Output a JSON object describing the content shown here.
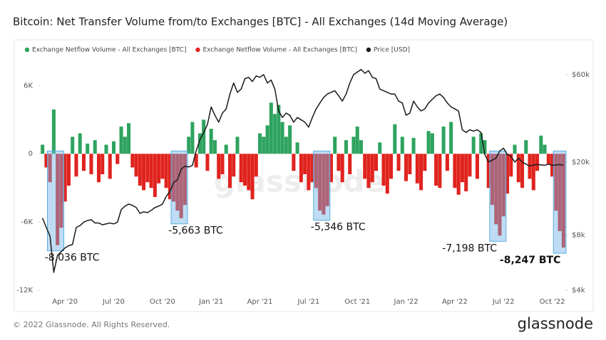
{
  "chart_data": {
    "type": "bar",
    "title": "Bitcoin: Net Transfer Volume from/to Exchanges [BTC] - All Exchanges (14d Moving Average)",
    "watermark": "glassnode",
    "legend": "top-left",
    "grid": false,
    "categories": [
      null,
      null,
      null,
      null,
      null,
      null,
      "Apr '20",
      null,
      null,
      null,
      null,
      null,
      null,
      null,
      null,
      null,
      null,
      null,
      null,
      "Jul '20",
      null,
      null,
      null,
      null,
      null,
      null,
      null,
      null,
      null,
      null,
      null,
      null,
      "Oct '20",
      null,
      null,
      null,
      null,
      null,
      null,
      null,
      null,
      null,
      null,
      null,
      null,
      "Jan '21",
      null,
      null,
      null,
      null,
      null,
      null,
      null,
      null,
      null,
      null,
      null,
      null,
      "Apr '21",
      null,
      null,
      null,
      null,
      null,
      null,
      null,
      null,
      null,
      null,
      null,
      null,
      "Jul '21",
      null,
      null,
      null,
      null,
      null,
      null,
      null,
      null,
      null,
      null,
      null,
      null,
      "Oct '21",
      null,
      null,
      null,
      null,
      null,
      null,
      null,
      null,
      null,
      null,
      null,
      null,
      "Jan '22",
      null,
      null,
      null,
      null,
      null,
      null,
      null,
      null,
      null,
      null,
      null,
      null,
      "Apr '22",
      null,
      null,
      null,
      null,
      null,
      null,
      null,
      null,
      null,
      null,
      null,
      null,
      "Jul '22",
      null,
      null,
      null,
      null,
      null,
      null,
      null,
      null,
      null,
      null,
      null,
      null,
      "Oct '22",
      null,
      null,
      null
    ],
    "series": [
      {
        "name": "Exchange Netflow Volume - All Exchanges [BTC]",
        "color": "#2ea35f",
        "negative_color": "#e0231e",
        "values": [
          800,
          -1200,
          -2500,
          3900,
          -8036,
          -6500,
          -4200,
          -2800,
          1500,
          -2000,
          1800,
          -1500,
          900,
          -1800,
          1200,
          -2500,
          -1800,
          800,
          -2200,
          1100,
          -900,
          2400,
          1500,
          2700,
          -1200,
          -2000,
          -2800,
          -3200,
          -2500,
          -3000,
          -3800,
          -2600,
          -2200,
          -3000,
          -4000,
          -4200,
          -5000,
          -5663,
          -4500,
          1500,
          2800,
          -1200,
          1800,
          3000,
          -1500,
          2200,
          1200,
          -2200,
          -1800,
          800,
          -3000,
          -2000,
          1500,
          -2500,
          -2800,
          -3200,
          -4000,
          -2000,
          1800,
          1500,
          2500,
          4500,
          3500,
          4300,
          2800,
          1500,
          2500,
          -1500,
          1000,
          -2500,
          -1800,
          -3200,
          -2500,
          -3000,
          -5000,
          -5346,
          -4600,
          -2500,
          1500,
          -1500,
          -2500,
          1200,
          -1800,
          1500,
          2400,
          1200,
          -2200,
          -3000,
          -2500,
          -1500,
          1000,
          -2800,
          -3500,
          -2200,
          2600,
          -1500,
          1500,
          -2400,
          -1800,
          1400,
          -2600,
          -3200,
          -1500,
          2000,
          1800,
          -2800,
          -3000,
          2400,
          -1500,
          2800,
          -3000,
          -3600,
          -2500,
          -3300,
          -2000,
          1500,
          -2200,
          1800,
          1200,
          -3000,
          -4500,
          -6200,
          -7198,
          -5500,
          -3500,
          -2000,
          800,
          -2500,
          -3000,
          1200,
          -2200,
          -3200,
          -1500,
          1600,
          800,
          -900,
          -2000,
          -5000,
          -6800,
          -8247
        ],
        "value_labels": [
          null,
          null,
          null,
          null,
          "-8,036 BTC",
          null,
          null,
          null,
          null,
          null,
          null,
          null,
          null,
          null,
          null,
          null,
          null,
          null,
          null,
          null,
          null,
          null,
          null,
          null,
          null,
          null,
          null,
          null,
          null,
          null,
          null,
          null,
          null,
          null,
          null,
          null,
          null,
          "-5,663 BTC",
          null,
          null,
          null,
          null,
          null,
          null,
          null,
          null,
          null,
          null,
          null,
          null,
          null,
          null,
          null,
          null,
          null,
          null,
          null,
          null,
          null,
          null,
          null,
          null,
          null,
          null,
          null,
          null,
          null,
          null,
          null,
          null,
          null,
          null,
          null,
          null,
          null,
          "-5,346 BTC",
          null,
          null,
          null,
          null,
          null,
          null,
          null,
          null,
          null,
          null,
          null,
          null,
          null,
          null,
          null,
          null,
          null,
          null,
          null,
          null,
          null,
          null,
          null,
          null,
          null,
          null,
          null,
          null,
          null,
          null,
          null,
          null,
          null,
          null,
          null,
          null,
          null,
          null,
          null,
          null,
          null,
          null,
          null,
          null,
          null,
          null,
          "-7,198 BTC",
          null,
          null,
          null,
          null,
          null,
          null,
          null,
          null,
          null,
          null,
          null,
          null,
          null,
          null,
          null,
          null,
          "-8,247 BTC"
        ]
      },
      {
        "name": "Price [USD]",
        "color": "#1a1a1a",
        "axis": "y2",
        "values": [
          9900,
          8800,
          7900,
          5000,
          6200,
          6500,
          6800,
          7000,
          7100,
          8800,
          9000,
          9400,
          9600,
          9700,
          9300,
          9300,
          9100,
          9200,
          9300,
          9200,
          9400,
          11000,
          11500,
          11800,
          11600,
          11300,
          10500,
          10700,
          10600,
          10900,
          11300,
          11500,
          11800,
          13000,
          13800,
          15500,
          16000,
          18300,
          19000,
          18800,
          19200,
          23000,
          26500,
          29000,
          32000,
          40000,
          36000,
          33000,
          37000,
          39000,
          47000,
          54000,
          48000,
          50000,
          57000,
          58000,
          55000,
          59000,
          58000,
          60000,
          54000,
          56000,
          50000,
          38000,
          35000,
          37000,
          36000,
          33000,
          35000,
          34000,
          33000,
          31000,
          35000,
          39000,
          42000,
          45000,
          47000,
          48000,
          49000,
          46000,
          43000,
          47000,
          54000,
          60000,
          62000,
          64000,
          61000,
          63000,
          58000,
          57000,
          50000,
          49000,
          48000,
          47000,
          47000,
          43000,
          42000,
          36000,
          37000,
          43000,
          40000,
          38000,
          39000,
          42000,
          44000,
          46000,
          47000,
          45000,
          42000,
          40000,
          39000,
          38000,
          30000,
          29000,
          30000,
          29500,
          30000,
          29000,
          22000,
          20000,
          20500,
          21000,
          23000,
          23800,
          22000,
          21500,
          20000,
          21000,
          20000,
          19500,
          19000,
          19300,
          19400,
          19300,
          19200,
          19500,
          19200,
          19300,
          19400,
          19200
        ]
      }
    ],
    "ylim": [
      -12000,
      8400
    ],
    "yticks": [
      {
        "value": 6000,
        "label": "6K"
      },
      0,
      {
        "value": -6000,
        "label": "-6K"
      },
      {
        "value": -12000,
        "label": "-12K"
      }
    ],
    "y2scale": "log",
    "y2lim": [
      4000,
      73600
    ],
    "y2ticks": [
      {
        "value": 60000,
        "label": "$60k"
      },
      {
        "value": 20000,
        "label": "$20k"
      },
      {
        "value": 8000,
        "label": "$8k"
      },
      {
        "value": 4000,
        "label": "$4k"
      }
    ]
  },
  "footer": {
    "copyright": "© 2022 Glassnode. All Rights Reserved.",
    "logo": "glassnode"
  }
}
